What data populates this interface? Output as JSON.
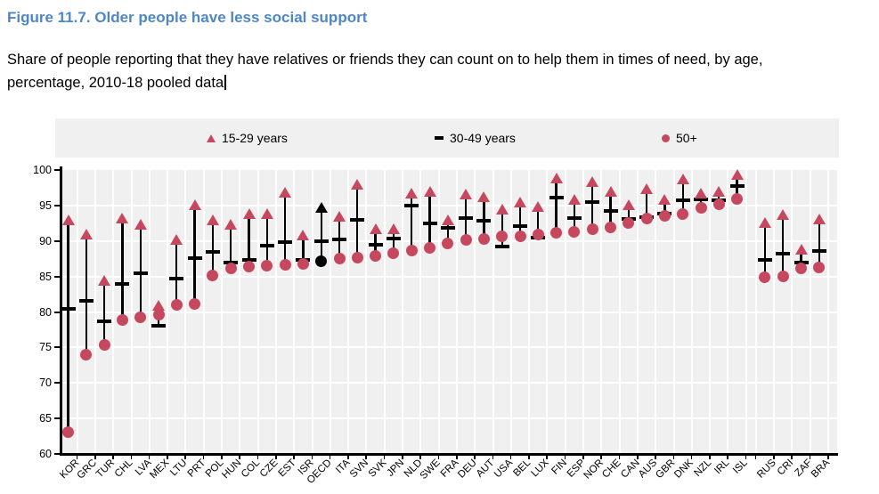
{
  "figure": {
    "title": "Figure 11.7. Older people have less social support",
    "subtitle_line1": "Share of people reporting that they have relatives or friends they can count on to help them in times of need, by age,",
    "subtitle_line2": "percentage, 2010-18 pooled data"
  },
  "legend": {
    "items": [
      {
        "label": "15-29 years",
        "marker": "triangle-icon"
      },
      {
        "label": "30-49 years",
        "marker": "dash-icon"
      },
      {
        "label": "50+",
        "marker": "circle-icon"
      }
    ]
  },
  "colors": {
    "title_blue": "#4f86c6",
    "marker_rose": "#c6485e",
    "marker_black": "#000000",
    "plot_background": "#f0f0f0",
    "gridline": "#ffffff"
  },
  "chart_data": {
    "type": "scatter",
    "title": "Figure 11.7. Older people have less social support",
    "ylabel": "",
    "xlabel": "",
    "ylim": [
      60,
      100
    ],
    "yticks": [
      60,
      65,
      70,
      75,
      80,
      85,
      90,
      95,
      100
    ],
    "grid": true,
    "legend_position": "top",
    "highlight_category": "OECD",
    "group_break_after_index": 37,
    "categories": [
      "KOR",
      "GRC",
      "TUR",
      "CHL",
      "LVA",
      "MEX",
      "LTU",
      "PRT",
      "POL",
      "HUN",
      "COL",
      "CZE",
      "EST",
      "ISR",
      "OECD",
      "ITA",
      "SVN",
      "SVK",
      "JPN",
      "NLD",
      "SWE",
      "FRA",
      "DEU",
      "AUT",
      "USA",
      "BEL",
      "LUX",
      "FIN",
      "ESP",
      "NOR",
      "CHE",
      "CAN",
      "AUS",
      "GBR",
      "DNK",
      "NZL",
      "IRL",
      "ISL",
      "RUS",
      "CRI",
      "ZAF",
      "BRA"
    ],
    "series": [
      {
        "name": "15-29 years",
        "marker": "triangle",
        "values": [
          93.0,
          91.0,
          84.4,
          93.2,
          92.3,
          81.0,
          90.2,
          95.1,
          93.0,
          92.3,
          93.9,
          93.9,
          96.9,
          90.8,
          94.7,
          93.5,
          98.0,
          91.7,
          91.7,
          96.8,
          97.0,
          93.0,
          96.6,
          96.3,
          94.5,
          95.5,
          94.9,
          98.9,
          95.8,
          98.4,
          97.0,
          95.1,
          97.4,
          95.8,
          98.7,
          96.8,
          97.0,
          99.4,
          92.6,
          93.7,
          88.8,
          93.1
        ]
      },
      {
        "name": "30-49 years",
        "marker": "dash",
        "values": [
          80.5,
          81.6,
          78.7,
          84.0,
          85.4,
          78.1,
          84.7,
          87.6,
          88.5,
          87.0,
          87.3,
          89.4,
          89.8,
          87.3,
          90.0,
          90.2,
          93.0,
          89.5,
          90.3,
          95.0,
          92.5,
          91.8,
          93.2,
          92.8,
          89.2,
          92.1,
          90.5,
          96.1,
          93.2,
          95.5,
          94.2,
          93.1,
          93.4,
          93.9,
          95.7,
          95.8,
          95.7,
          97.8,
          87.3,
          88.2,
          86.9,
          88.6
        ]
      },
      {
        "name": "50+",
        "marker": "circle",
        "values": [
          63.1,
          74.0,
          75.4,
          78.9,
          79.2,
          79.6,
          81.0,
          81.1,
          85.1,
          86.2,
          86.4,
          86.5,
          86.6,
          86.8,
          87.2,
          87.5,
          87.7,
          87.9,
          88.3,
          88.6,
          89.0,
          89.7,
          90.1,
          90.3,
          90.6,
          90.7,
          90.9,
          91.1,
          91.3,
          91.6,
          91.9,
          92.5,
          93.2,
          93.5,
          93.8,
          94.7,
          95.2,
          95.9,
          84.9,
          85.0,
          86.1,
          86.3
        ]
      }
    ]
  }
}
